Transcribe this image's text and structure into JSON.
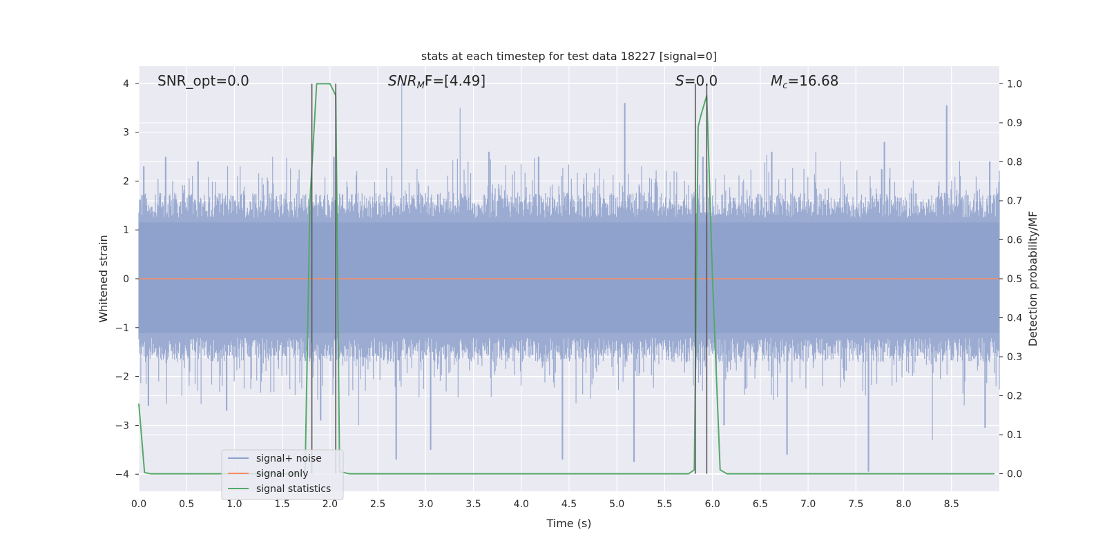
{
  "chart_data": {
    "type": "line",
    "title": "stats at each timestep for test data 18227 [signal=0]",
    "xlabel": "Time (s)",
    "ylabel": "Whitened strain",
    "ylabel_right": "Detection probability/MF",
    "xlim": [
      0.0,
      9.0
    ],
    "ylim": [
      -4.35,
      4.35
    ],
    "ylim_right": [
      -0.045,
      1.045
    ],
    "x_ticks": [
      0.0,
      0.5,
      1.0,
      1.5,
      2.0,
      2.5,
      3.0,
      3.5,
      4.0,
      4.5,
      5.0,
      5.5,
      6.0,
      6.5,
      7.0,
      7.5,
      8.0,
      8.5
    ],
    "x_tick_labels": [
      "0.0",
      "0.5",
      "1.0",
      "1.5",
      "2.0",
      "2.5",
      "3.0",
      "3.5",
      "4.0",
      "4.5",
      "5.0",
      "5.5",
      "6.0",
      "6.5",
      "7.0",
      "7.5",
      "8.0",
      "8.5"
    ],
    "y_ticks": [
      4,
      3,
      2,
      1,
      0,
      -1,
      -2,
      -3,
      -4
    ],
    "y_tick_labels": [
      "4",
      "3",
      "2",
      "1",
      "0",
      "−1",
      "−2",
      "−3",
      "−4"
    ],
    "y_ticks_right": [
      1.0,
      0.9,
      0.8,
      0.7,
      0.6,
      0.5,
      0.4,
      0.3,
      0.2,
      0.1,
      0.0
    ],
    "y_tick_labels_right": [
      "1.0",
      "0.9",
      "0.8",
      "0.7",
      "0.6",
      "0.5",
      "0.4",
      "0.3",
      "0.2",
      "0.1",
      "0.0"
    ],
    "grid": true,
    "legend_position": "lower-left",
    "annotations": {
      "snr_opt": "SNR_opt=0.0",
      "snr_mf_prefix": "SNR",
      "snr_mf_sub": "M",
      "snr_mf_suffix": "F=[4.49]",
      "s_prefix": "S",
      "s_suffix": "=0.0",
      "mc_prefix": "M",
      "mc_sub": "c",
      "mc_suffix": "=16.68"
    },
    "vertical_markers": [
      1.81,
      2.06,
      5.82,
      5.94
    ],
    "series": [
      {
        "name": "signal+ noise",
        "color": "#8da0cb",
        "style": "noise",
        "envelope": {
          "upper_typical": 1.6,
          "lower_typical": -1.55,
          "peaks": [
            [
              0.05,
              2.3
            ],
            [
              0.28,
              2.5
            ],
            [
              0.62,
              2.4
            ],
            [
              1.06,
              2.3
            ],
            [
              1.4,
              2.5
            ],
            [
              2.04,
              2.5
            ],
            [
              2.75,
              4.0
            ],
            [
              3.36,
              3.5
            ],
            [
              3.66,
              2.6
            ],
            [
              4.18,
              2.5
            ],
            [
              5.08,
              3.6
            ],
            [
              5.9,
              2.5
            ],
            [
              6.62,
              2.6
            ],
            [
              7.08,
              2.6
            ],
            [
              7.8,
              2.8
            ],
            [
              8.45,
              3.55
            ],
            [
              8.9,
              2.4
            ]
          ],
          "troughs": [
            [
              0.1,
              -2.6
            ],
            [
              0.92,
              -2.7
            ],
            [
              1.9,
              -2.9
            ],
            [
              2.3,
              -3.0
            ],
            [
              2.69,
              -3.7
            ],
            [
              3.05,
              -3.5
            ],
            [
              4.43,
              -3.7
            ],
            [
              5.18,
              -3.75
            ],
            [
              6.12,
              -3.0
            ],
            [
              6.78,
              -3.6
            ],
            [
              7.63,
              -3.95
            ],
            [
              8.3,
              -3.3
            ],
            [
              8.85,
              -3.05
            ]
          ]
        }
      },
      {
        "name": "signal only",
        "color": "#fc8d62",
        "x": [
          0.0,
          9.0
        ],
        "y": [
          0.0,
          0.0
        ]
      },
      {
        "name": "signal statistics",
        "color": "#55a868",
        "axis": "right",
        "x": [
          0.0,
          0.06,
          0.12,
          0.2,
          1.7,
          1.74,
          1.79,
          1.86,
          1.95,
          2.0,
          2.06,
          2.1,
          2.2,
          5.75,
          5.81,
          5.85,
          5.88,
          5.94,
          6.0,
          6.08,
          6.15,
          8.95
        ],
        "y": [
          0.18,
          0.003,
          0.0,
          0.0,
          0.0,
          0.01,
          0.7,
          1.0,
          1.0,
          1.0,
          0.97,
          0.005,
          0.0,
          0.0,
          0.01,
          0.89,
          0.92,
          0.97,
          0.5,
          0.01,
          0.0,
          0.0
        ]
      }
    ]
  }
}
